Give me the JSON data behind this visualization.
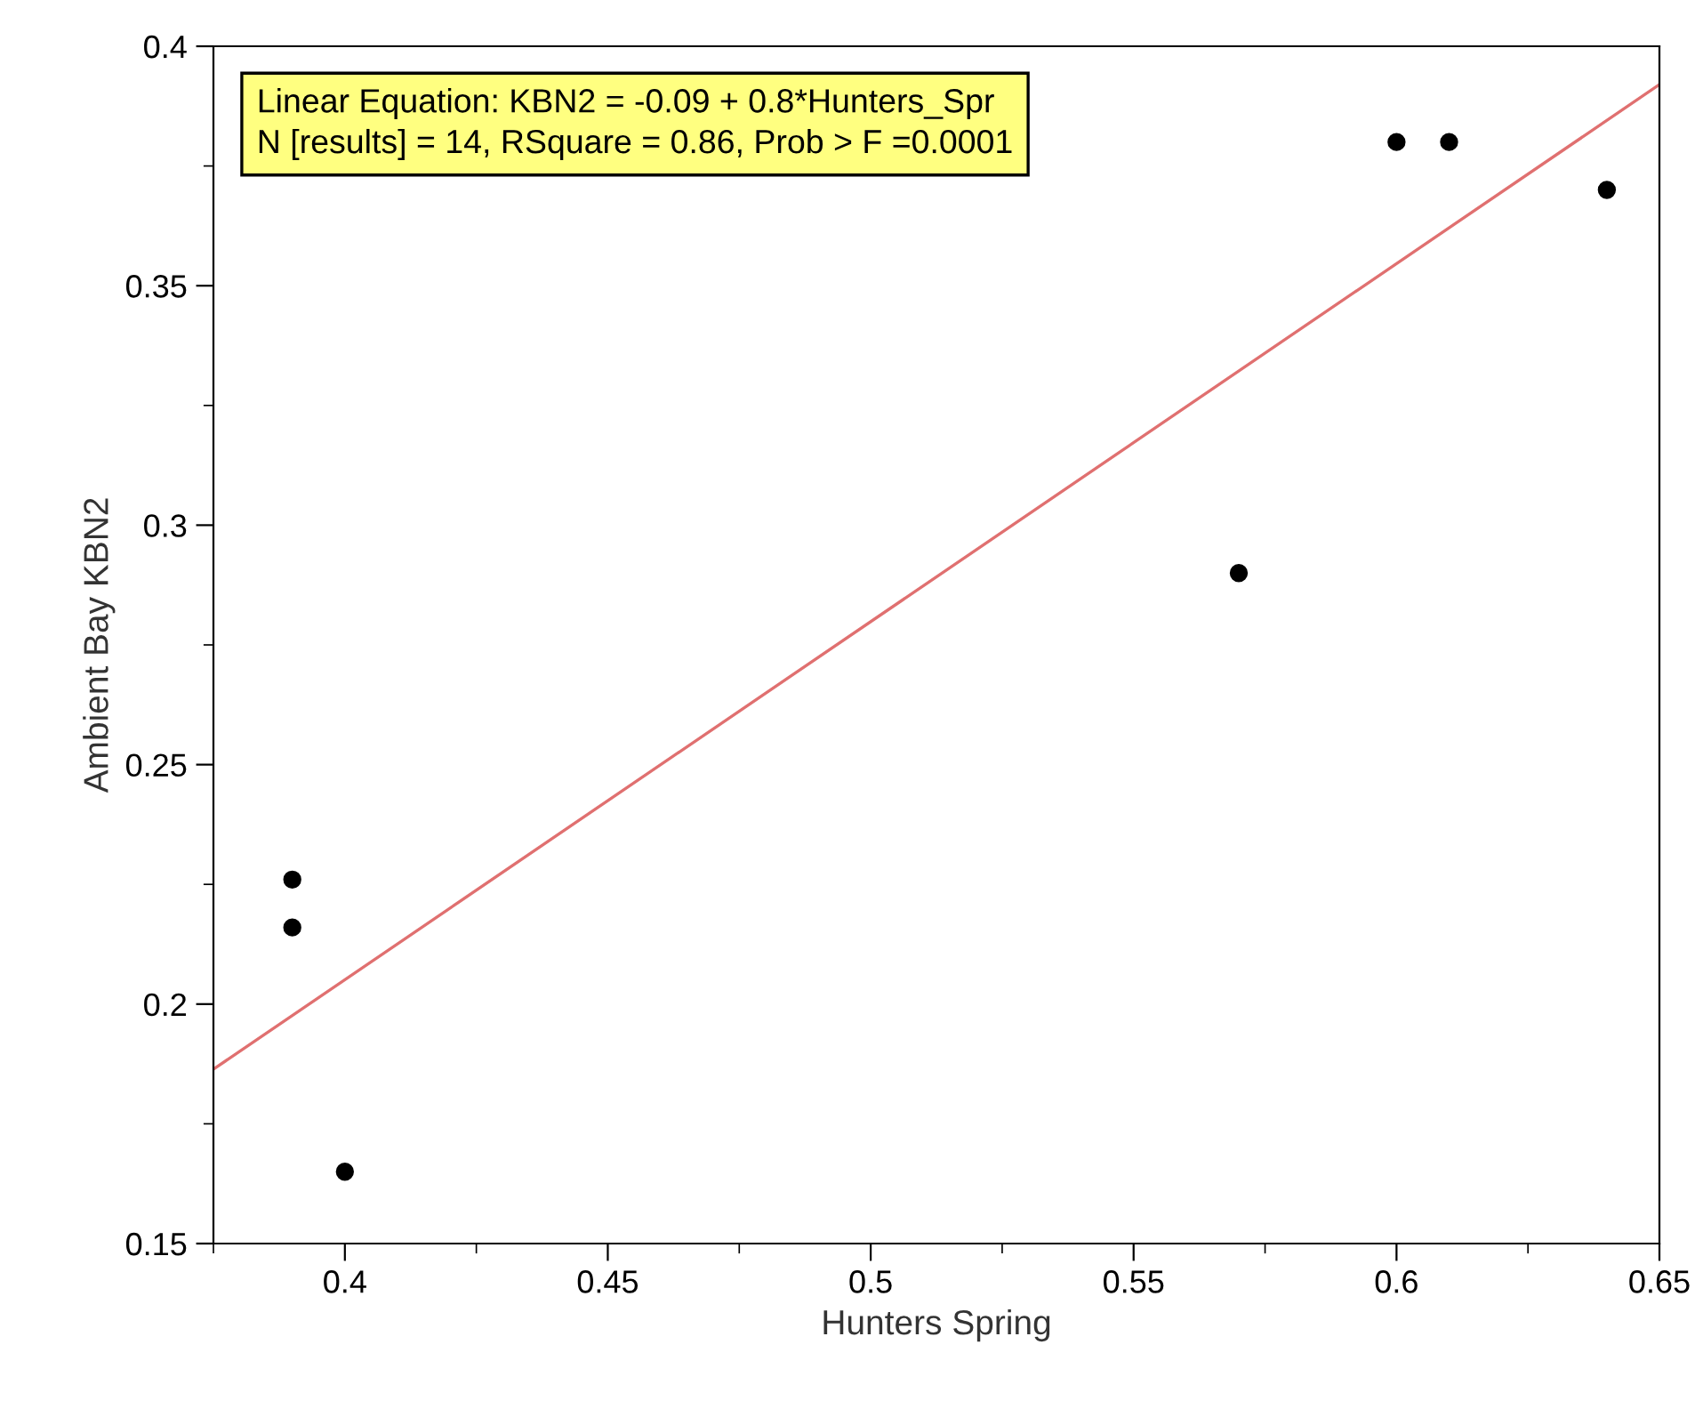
{
  "chart_data": {
    "type": "scatter",
    "xlabel": "Hunters Spring",
    "ylabel": "Ambient Bay KBN2",
    "x": [
      0.39,
      0.39,
      0.4,
      0.57,
      0.6,
      0.61,
      0.64
    ],
    "series": [
      {
        "color": "#000000",
        "values": [
          0.226,
          0.216,
          0.165,
          0.29,
          0.38,
          0.38,
          0.37
        ],
        "marker": "circle"
      },
      {
        "type": "line",
        "color": "#e07070",
        "x": [
          0.375,
          0.65
        ],
        "values": [
          0.1864,
          0.392
        ],
        "line_style": "solid"
      }
    ],
    "xlim": [
      0.375,
      0.65
    ],
    "ylim": [
      0.15,
      0.4
    ],
    "xticks": [
      {
        "value": 0.375,
        "label": null
      },
      0.4,
      {
        "value": 0.425,
        "label": null
      },
      0.45,
      {
        "value": 0.475,
        "label": null
      },
      0.5,
      {
        "value": 0.525,
        "label": null
      },
      0.55,
      {
        "value": 0.575,
        "label": null
      },
      0.6,
      {
        "value": 0.625,
        "label": null
      },
      0.65
    ],
    "yticks": [
      0.15,
      {
        "value": 0.175,
        "label": null
      },
      0.2,
      {
        "value": 0.225,
        "label": null
      },
      0.25,
      {
        "value": 0.275,
        "label": null
      },
      0.3,
      {
        "value": 0.325,
        "label": null
      },
      0.35,
      {
        "value": 0.375,
        "label": null
      },
      0.4
    ],
    "annotations": [
      "Linear Equation: KBN2 = -0.09 + 0.8*Hunters_Spr\nN [results] = 14, RSquare = 0.86, Prob > F =0.0001"
    ],
    "grid": false,
    "legend": false
  }
}
